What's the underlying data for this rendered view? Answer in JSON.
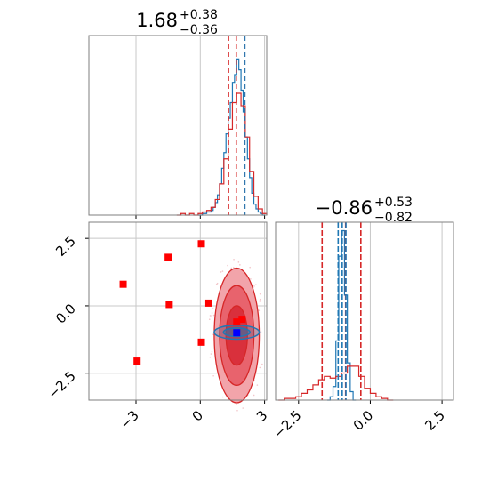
{
  "chart_data": [
    {
      "type": "histogram",
      "panel": "top-left",
      "title": {
        "value": "1.68",
        "upper": "+0.38",
        "lower": "−0.36"
      },
      "xlim": [
        -5.2,
        3.1
      ],
      "x_ticks": [
        -3,
        0,
        3
      ],
      "grid": true,
      "series": [
        {
          "color": "#1f77b4",
          "bin_centers": [
            -0.05,
            0.05,
            0.15,
            0.25,
            0.35,
            0.45,
            0.55,
            0.65,
            0.75,
            0.85,
            0.95,
            1.05,
            1.15,
            1.25,
            1.35,
            1.45,
            1.55,
            1.65,
            1.75,
            1.85,
            1.95,
            2.05,
            2.15,
            2.25,
            2.35,
            2.45,
            2.55,
            2.65,
            2.75,
            2.85,
            2.95
          ],
          "counts": [
            0,
            0,
            0.01,
            0.01,
            0.02,
            0.02,
            0.03,
            0.05,
            0.08,
            0.13,
            0.2,
            0.3,
            0.4,
            0.52,
            0.62,
            0.72,
            0.85,
            0.9,
            1.0,
            0.93,
            0.8,
            0.66,
            0.5,
            0.36,
            0.24,
            0.14,
            0.07,
            0.04,
            0.02,
            0.01,
            0
          ]
        },
        {
          "color": "#d62728",
          "bin_centers": [
            -1.0,
            -0.8,
            -0.6,
            -0.4,
            -0.2,
            0.0,
            0.2,
            0.4,
            0.6,
            0.8,
            1.0,
            1.2,
            1.4,
            1.6,
            1.8,
            2.0,
            2.2,
            2.4,
            2.6,
            2.8,
            3.0
          ],
          "counts": [
            0,
            0.01,
            0.0,
            0.01,
            0.0,
            0.01,
            0.02,
            0.03,
            0.05,
            0.1,
            0.2,
            0.36,
            0.55,
            0.72,
            0.78,
            0.7,
            0.5,
            0.28,
            0.12,
            0.04,
            0.01
          ]
        }
      ],
      "quantile_lines": [
        {
          "x": 1.32,
          "color": "#d62728"
        },
        {
          "x": 1.68,
          "color": "#d62728"
        },
        {
          "x": 2.06,
          "color": "#d62728"
        },
        {
          "x": 2.08,
          "color": "#1f77b4"
        }
      ]
    },
    {
      "type": "scatter",
      "panel": "bottom-left",
      "xlim": [
        -5.2,
        3.1
      ],
      "ylim": [
        -3.5,
        3.1
      ],
      "x_ticks": [
        -3,
        0,
        3
      ],
      "y_ticks": [
        2.5,
        0.0,
        -2.5
      ],
      "x_tick_labels": [
        "−3",
        "0",
        "3"
      ],
      "y_tick_labels": [
        "2.5",
        "0.0",
        "−2.5"
      ],
      "grid": true,
      "red_squares": [
        {
          "x": 0.05,
          "y": 2.3
        },
        {
          "x": -1.5,
          "y": 1.8
        },
        {
          "x": -3.6,
          "y": 0.8
        },
        {
          "x": -1.45,
          "y": 0.05
        },
        {
          "x": 0.4,
          "y": 0.1
        },
        {
          "x": 0.05,
          "y": -1.35
        },
        {
          "x": -2.95,
          "y": -2.05
        },
        {
          "x": 1.95,
          "y": -0.5
        },
        {
          "x": 1.7,
          "y": -0.6
        }
      ],
      "blue_square": {
        "x": 1.7,
        "y": -1.0
      },
      "red_contour_center": {
        "x": 1.7,
        "y": -1.1
      },
      "red_contour_radii": [
        {
          "rx": 1.05,
          "ry": 2.5
        },
        {
          "rx": 0.8,
          "ry": 1.85
        },
        {
          "rx": 0.5,
          "ry": 1.1
        }
      ],
      "blue_contour_center": {
        "x": 1.7,
        "y": -0.98
      },
      "blue_contour_radii": [
        {
          "rx": 1.05,
          "ry": 0.26
        },
        {
          "rx": 0.62,
          "ry": 0.16
        }
      ]
    },
    {
      "type": "histogram",
      "panel": "bottom-right",
      "title": {
        "value": "−0.86",
        "upper": "+0.53",
        "lower": "−0.82"
      },
      "xlim": [
        -3.3,
        2.9
      ],
      "x_ticks": [
        -2.5,
        0.0,
        2.5
      ],
      "x_tick_labels": [
        "−2.5",
        "0.0",
        "2.5"
      ],
      "grid": true,
      "series": [
        {
          "color": "#1f77b4",
          "bin_centers": [
            -1.45,
            -1.35,
            -1.25,
            -1.15,
            -1.05,
            -0.95,
            -0.85,
            -0.75,
            -0.65,
            -0.55
          ],
          "counts": [
            0,
            0.02,
            0.08,
            0.35,
            0.85,
            1.0,
            0.62,
            0.22,
            0.05,
            0
          ],
          "extra": {
            "peak_x": -0.98
          }
        },
        {
          "color": "#d62728",
          "bin_centers": [
            -3.1,
            -2.9,
            -2.7,
            -2.5,
            -2.3,
            -2.1,
            -1.9,
            -1.7,
            -1.5,
            -1.3,
            -1.1,
            -0.9,
            -0.7,
            -0.5,
            -0.3,
            -0.1,
            0.1,
            0.3,
            0.5,
            0.7
          ],
          "counts": [
            0,
            0.01,
            0.01,
            0.02,
            0.04,
            0.06,
            0.09,
            0.12,
            0.14,
            0.13,
            0.14,
            0.16,
            0.2,
            0.2,
            0.14,
            0.07,
            0.04,
            0.02,
            0.01,
            0
          ]
        }
      ],
      "quantile_lines": [
        {
          "x": -1.68,
          "color": "#d62728"
        },
        {
          "x": -0.86,
          "color": "#d62728"
        },
        {
          "x": -0.33,
          "color": "#d62728"
        },
        {
          "x": -1.12,
          "color": "#1f77b4"
        },
        {
          "x": -0.98,
          "color": "#1f77b4"
        },
        {
          "x": -0.85,
          "color": "#1f77b4"
        }
      ]
    }
  ]
}
